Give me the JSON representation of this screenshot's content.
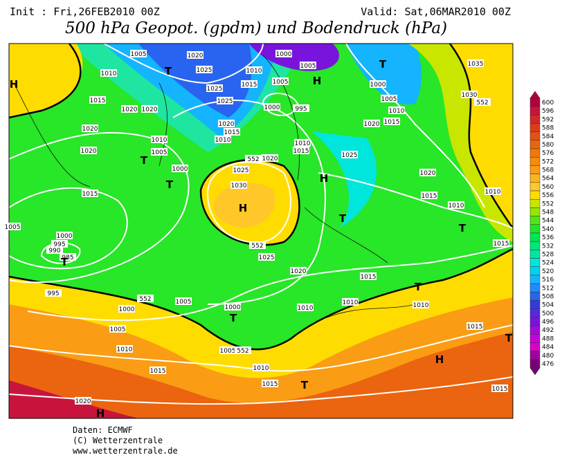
{
  "header": {
    "init": "Init : Fri,26FEB2010 00Z",
    "valid": "Valid: Sat,06MAR2010 00Z",
    "title": "500 hPa Geopot. (gpdm) und Bodendruck (hPa)"
  },
  "map_labels": [
    "H",
    "1005",
    "1020",
    "T",
    "1025",
    "1010",
    "1015",
    "1020",
    "1020",
    "1025",
    "1025",
    "1020",
    "1010",
    "1005",
    "T",
    "1000",
    "T",
    "1020",
    "1015",
    "1020",
    "1015",
    "1010",
    "1000",
    "1005",
    "1010",
    "1015",
    "1005",
    "H",
    "1000",
    "995",
    "1035",
    "T",
    "1000",
    "1005",
    "1010",
    "1015",
    "1020",
    "1030",
    "1010",
    "1015",
    "1020",
    "1025",
    "1030",
    "H",
    "1025",
    "H",
    "1020",
    "1015",
    "1010",
    "T",
    "T",
    "1015",
    "1010",
    "1000",
    "995",
    "990",
    "985",
    "T",
    "1005",
    "1025",
    "1020",
    "1015",
    "995",
    "1000",
    "1005",
    "1000",
    "T",
    "1010",
    "1010",
    "T",
    "1010",
    "1005",
    "1010",
    "1005",
    "1010",
    "1015",
    "1015",
    "T",
    "H",
    "1015",
    "T",
    "1015",
    "1020",
    "H",
    "552",
    "552",
    "552",
    "552",
    "552"
  ],
  "colorbar": {
    "labels": [
      600,
      596,
      592,
      588,
      584,
      580,
      576,
      572,
      568,
      564,
      560,
      556,
      552,
      548,
      544,
      540,
      536,
      532,
      528,
      524,
      520,
      516,
      512,
      508,
      504,
      500,
      496,
      492,
      488,
      484,
      480,
      476
    ],
    "colors": [
      "#b4003c",
      "#c8143c",
      "#d22828",
      "#dc3c1e",
      "#e65014",
      "#eb640f",
      "#f0780a",
      "#f58c0a",
      "#fa9c14",
      "#ffb41e",
      "#ffc828",
      "#ffdc00",
      "#c8e600",
      "#96e600",
      "#50e614",
      "#1ee628",
      "#00e650",
      "#00e678",
      "#00e6a0",
      "#00e6dc",
      "#00d2f0",
      "#14b4ff",
      "#1e8cff",
      "#2864f0",
      "#323cdc",
      "#5a28dc",
      "#7814dc",
      "#a00adc",
      "#c800dc",
      "#dc00c8",
      "#a000a0",
      "#780078"
    ]
  },
  "footer": {
    "source": "Daten: ECMWF",
    "copyright": "(C) Wetterzentrale",
    "url": "www.wetterzentrale.de"
  }
}
